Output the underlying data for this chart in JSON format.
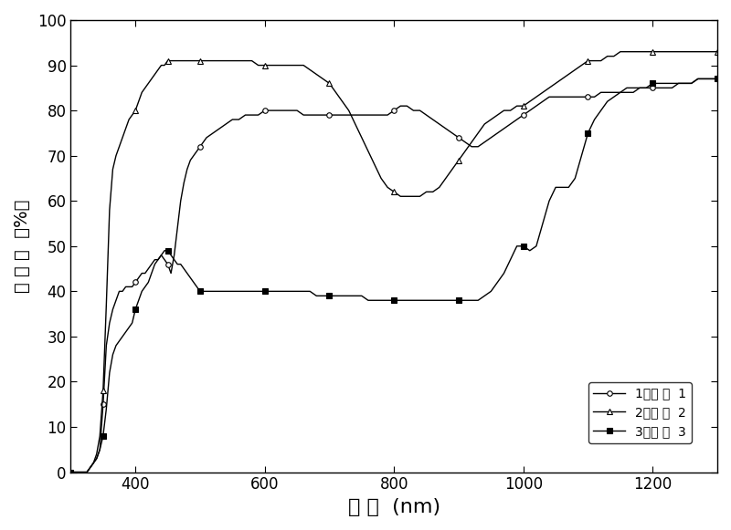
{
  "title": "",
  "xlabel": "波 长  (nm)",
  "ylabel": "透 过 率  （%）",
  "xlim": [
    300,
    1300
  ],
  "ylim": [
    0,
    100
  ],
  "xticks": [
    400,
    600,
    800,
    1000,
    1200
  ],
  "yticks": [
    0,
    10,
    20,
    30,
    40,
    50,
    60,
    70,
    80,
    90,
    100
  ],
  "legend_labels": [
    "1：样 品  1",
    "2：样 品  2",
    "3：样 品  3"
  ],
  "background_color": "#ffffff",
  "series1_x": [
    300,
    305,
    310,
    315,
    320,
    325,
    330,
    335,
    340,
    345,
    350,
    355,
    360,
    365,
    370,
    375,
    380,
    385,
    390,
    395,
    400,
    405,
    410,
    415,
    420,
    425,
    430,
    435,
    440,
    445,
    450,
    455,
    460,
    465,
    470,
    475,
    480,
    485,
    490,
    495,
    500,
    510,
    520,
    530,
    540,
    550,
    560,
    570,
    580,
    590,
    600,
    610,
    620,
    630,
    640,
    650,
    660,
    670,
    680,
    690,
    700,
    710,
    720,
    730,
    740,
    750,
    760,
    770,
    780,
    790,
    800,
    810,
    820,
    830,
    840,
    850,
    860,
    870,
    880,
    890,
    900,
    910,
    920,
    930,
    940,
    950,
    960,
    970,
    980,
    990,
    1000,
    1010,
    1020,
    1030,
    1040,
    1050,
    1060,
    1070,
    1080,
    1090,
    1100,
    1110,
    1120,
    1130,
    1140,
    1150,
    1160,
    1170,
    1180,
    1190,
    1200,
    1210,
    1220,
    1230,
    1240,
    1250,
    1260,
    1270,
    1280,
    1290,
    1300
  ],
  "series1_y": [
    0,
    0,
    0,
    0,
    0,
    0,
    1,
    2,
    3,
    5,
    15,
    28,
    33,
    36,
    38,
    40,
    40,
    41,
    41,
    41,
    42,
    43,
    44,
    44,
    45,
    46,
    47,
    47,
    48,
    47,
    46,
    44,
    48,
    54,
    60,
    64,
    67,
    69,
    70,
    71,
    72,
    74,
    75,
    76,
    77,
    78,
    78,
    79,
    79,
    79,
    80,
    80,
    80,
    80,
    80,
    80,
    79,
    79,
    79,
    79,
    79,
    79,
    79,
    79,
    79,
    79,
    79,
    79,
    79,
    79,
    80,
    81,
    81,
    80,
    80,
    79,
    78,
    77,
    76,
    75,
    74,
    73,
    72,
    72,
    73,
    74,
    75,
    76,
    77,
    78,
    79,
    80,
    81,
    82,
    83,
    83,
    83,
    83,
    83,
    83,
    83,
    83,
    84,
    84,
    84,
    84,
    84,
    84,
    85,
    85,
    85,
    85,
    85,
    85,
    86,
    86,
    86,
    87,
    87,
    87,
    87
  ],
  "series2_x": [
    300,
    305,
    310,
    315,
    320,
    325,
    330,
    335,
    340,
    345,
    350,
    355,
    360,
    365,
    370,
    375,
    380,
    385,
    390,
    395,
    400,
    405,
    410,
    415,
    420,
    425,
    430,
    435,
    440,
    445,
    450,
    455,
    460,
    465,
    470,
    475,
    480,
    485,
    490,
    495,
    500,
    510,
    520,
    530,
    540,
    550,
    560,
    570,
    580,
    590,
    600,
    610,
    620,
    630,
    640,
    650,
    660,
    670,
    680,
    690,
    700,
    710,
    720,
    730,
    740,
    750,
    760,
    770,
    780,
    790,
    800,
    810,
    820,
    830,
    840,
    850,
    860,
    870,
    880,
    890,
    900,
    910,
    920,
    930,
    940,
    950,
    960,
    970,
    980,
    990,
    1000,
    1010,
    1020,
    1030,
    1040,
    1050,
    1060,
    1070,
    1080,
    1090,
    1100,
    1110,
    1120,
    1130,
    1140,
    1150,
    1160,
    1170,
    1180,
    1190,
    1200,
    1210,
    1220,
    1230,
    1240,
    1250,
    1260,
    1270,
    1280,
    1290,
    1300
  ],
  "series2_y": [
    0,
    0,
    0,
    0,
    0,
    0,
    1,
    2,
    4,
    8,
    18,
    37,
    58,
    67,
    70,
    72,
    74,
    76,
    78,
    79,
    80,
    82,
    84,
    85,
    86,
    87,
    88,
    89,
    90,
    90,
    91,
    91,
    91,
    91,
    91,
    91,
    91,
    91,
    91,
    91,
    91,
    91,
    91,
    91,
    91,
    91,
    91,
    91,
    91,
    90,
    90,
    90,
    90,
    90,
    90,
    90,
    90,
    89,
    88,
    87,
    86,
    84,
    82,
    80,
    77,
    74,
    71,
    68,
    65,
    63,
    62,
    61,
    61,
    61,
    61,
    62,
    62,
    63,
    65,
    67,
    69,
    71,
    73,
    75,
    77,
    78,
    79,
    80,
    80,
    81,
    81,
    82,
    83,
    84,
    85,
    86,
    87,
    88,
    89,
    90,
    91,
    91,
    91,
    92,
    92,
    93,
    93,
    93,
    93,
    93,
    93,
    93,
    93,
    93,
    93,
    93,
    93,
    93,
    93,
    93,
    93
  ],
  "series3_x": [
    300,
    305,
    310,
    315,
    320,
    325,
    330,
    335,
    340,
    345,
    350,
    355,
    360,
    365,
    370,
    375,
    380,
    385,
    390,
    395,
    400,
    405,
    410,
    415,
    420,
    425,
    430,
    435,
    440,
    445,
    450,
    455,
    460,
    465,
    470,
    475,
    480,
    485,
    490,
    495,
    500,
    510,
    520,
    530,
    540,
    550,
    560,
    570,
    580,
    590,
    600,
    610,
    620,
    630,
    640,
    650,
    660,
    670,
    680,
    690,
    700,
    710,
    720,
    730,
    740,
    750,
    760,
    770,
    780,
    790,
    800,
    810,
    820,
    830,
    840,
    850,
    860,
    870,
    880,
    890,
    900,
    910,
    920,
    930,
    940,
    950,
    960,
    970,
    980,
    990,
    1000,
    1010,
    1020,
    1030,
    1040,
    1050,
    1060,
    1070,
    1080,
    1090,
    1100,
    1110,
    1120,
    1130,
    1140,
    1150,
    1160,
    1170,
    1180,
    1190,
    1200,
    1210,
    1220,
    1230,
    1240,
    1250,
    1260,
    1270,
    1280,
    1290,
    1300
  ],
  "series3_y": [
    0,
    0,
    0,
    0,
    0,
    0,
    1,
    2,
    3,
    5,
    8,
    14,
    22,
    26,
    28,
    29,
    30,
    31,
    32,
    33,
    36,
    38,
    40,
    41,
    42,
    44,
    46,
    47,
    48,
    49,
    49,
    48,
    47,
    46,
    46,
    45,
    44,
    43,
    42,
    41,
    40,
    40,
    40,
    40,
    40,
    40,
    40,
    40,
    40,
    40,
    40,
    40,
    40,
    40,
    40,
    40,
    40,
    40,
    39,
    39,
    39,
    39,
    39,
    39,
    39,
    39,
    38,
    38,
    38,
    38,
    38,
    38,
    38,
    38,
    38,
    38,
    38,
    38,
    38,
    38,
    38,
    38,
    38,
    38,
    39,
    40,
    42,
    44,
    47,
    50,
    50,
    49,
    50,
    55,
    60,
    63,
    63,
    63,
    65,
    70,
    75,
    78,
    80,
    82,
    83,
    84,
    85,
    85,
    85,
    85,
    86,
    86,
    86,
    86,
    86,
    86,
    86,
    87,
    87,
    87,
    87
  ]
}
